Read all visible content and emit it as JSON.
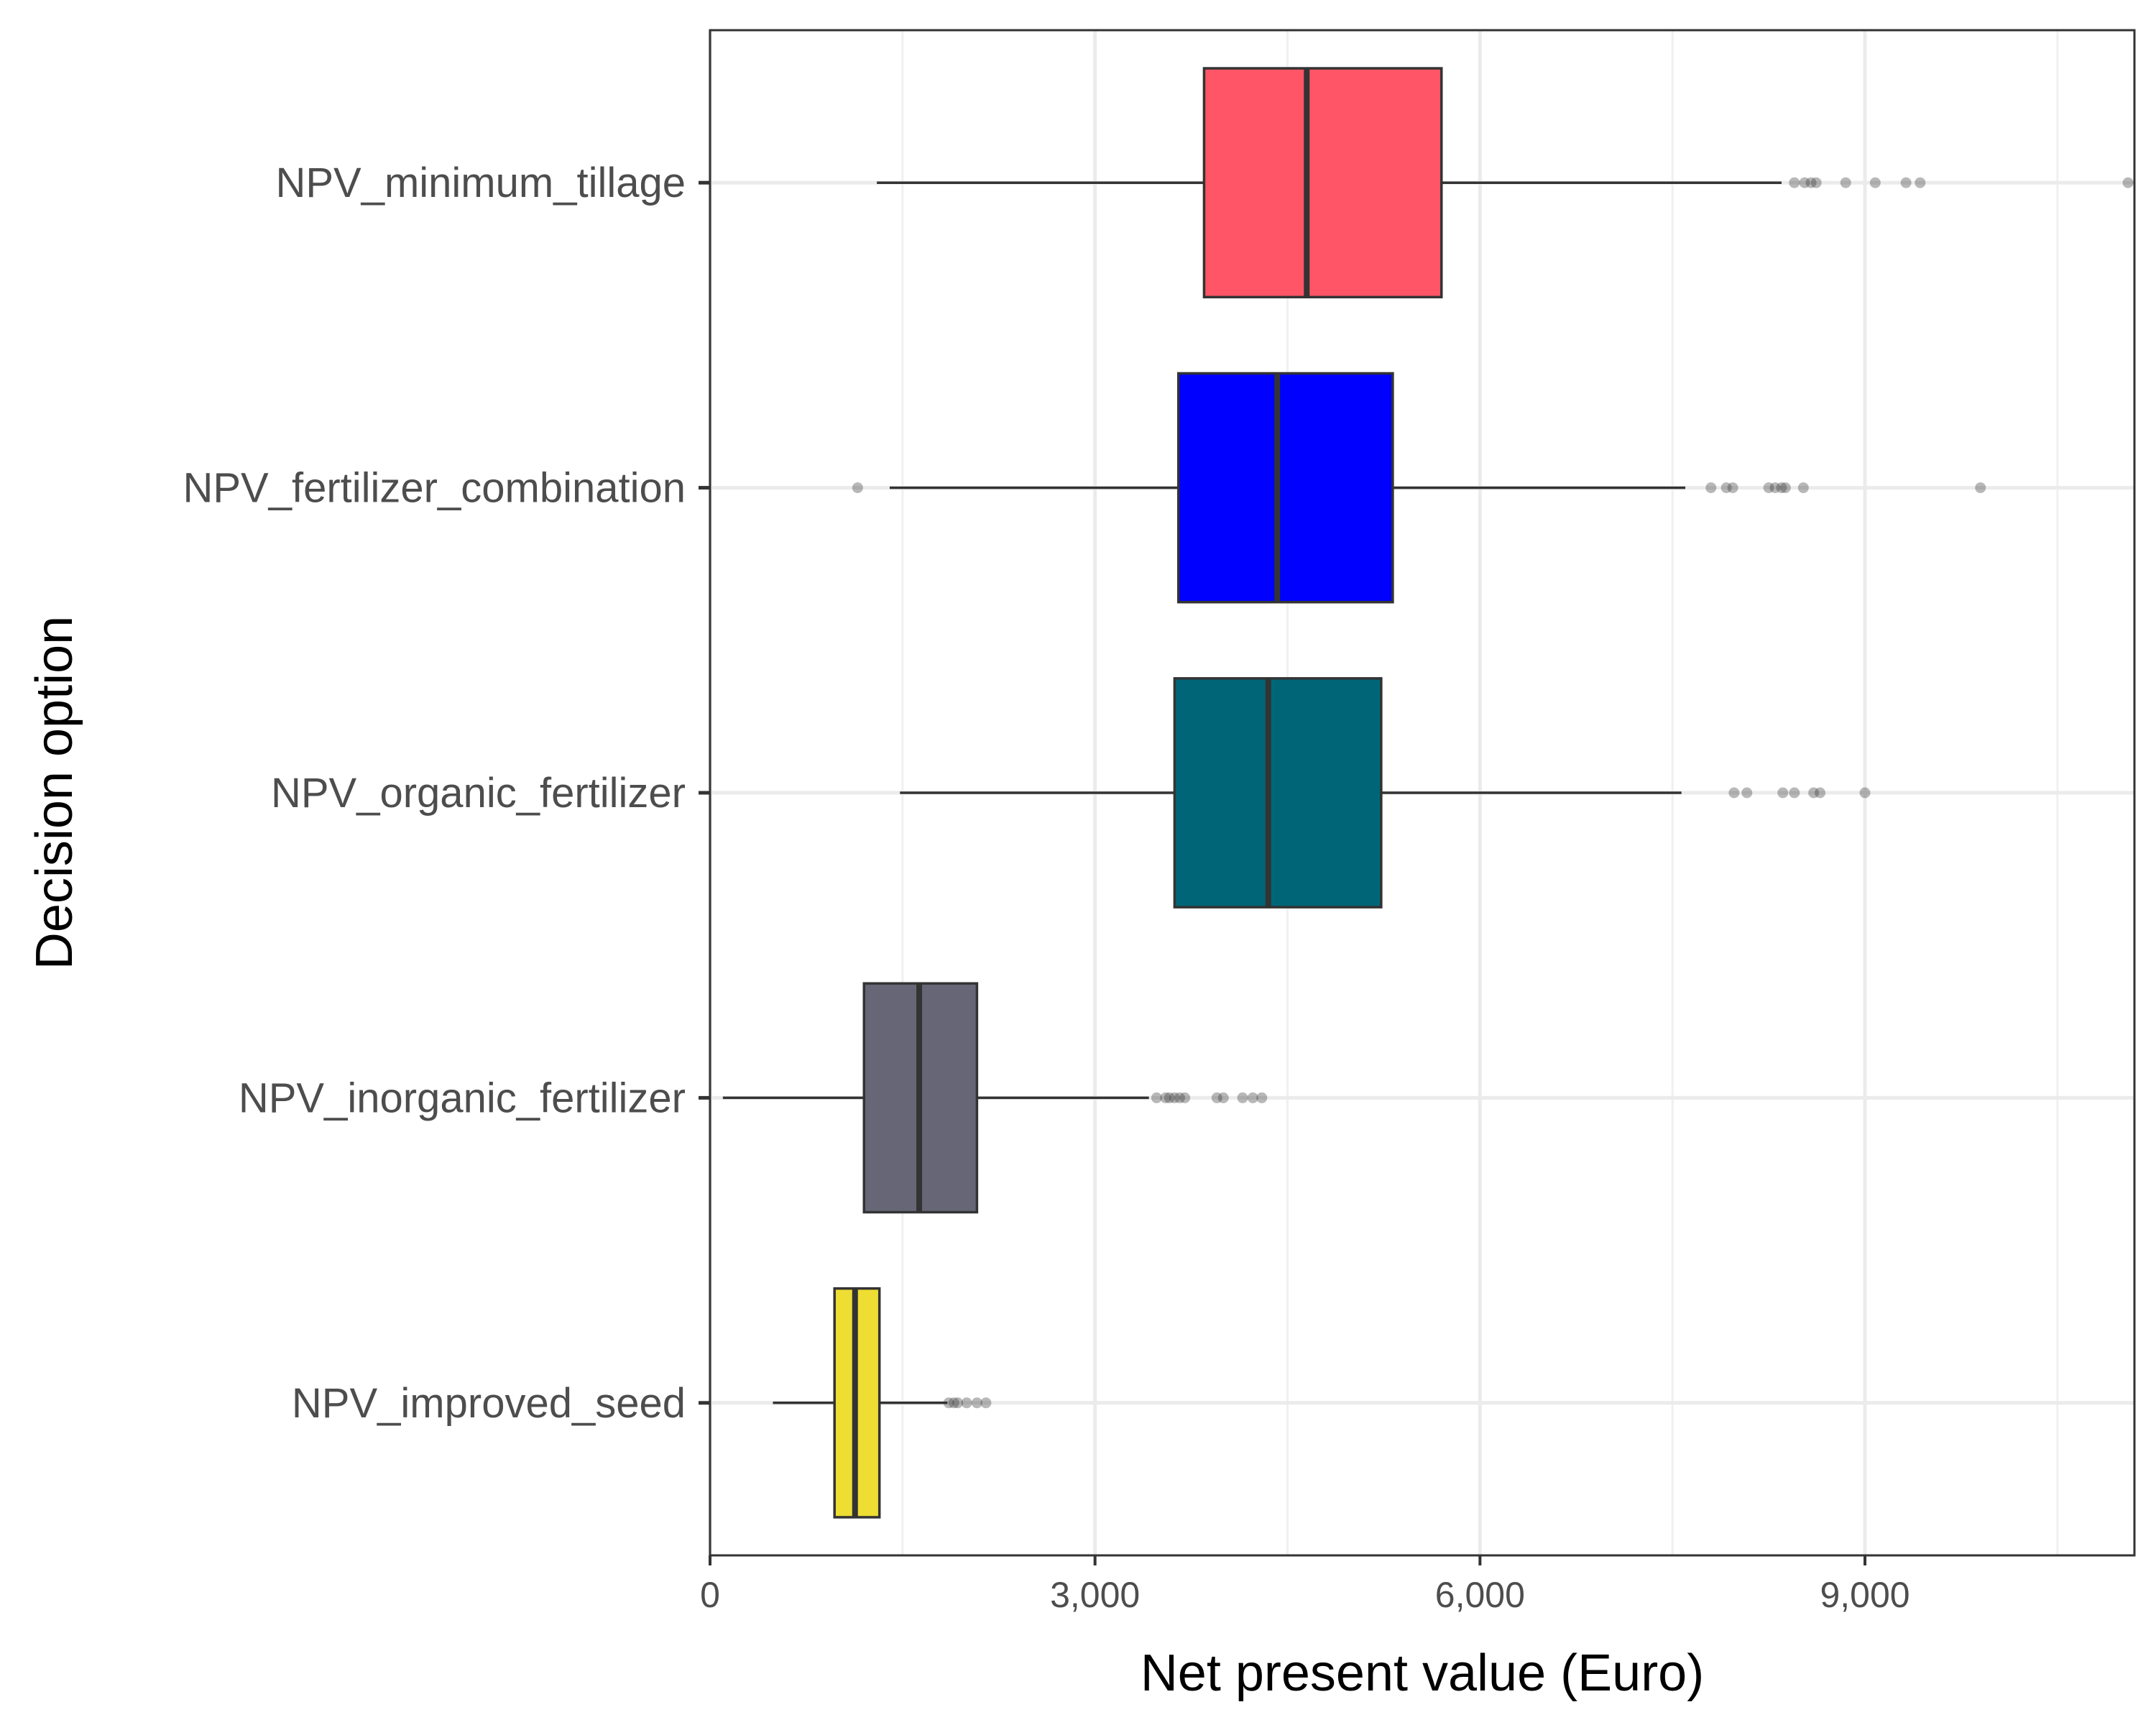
{
  "chart_data": {
    "type": "boxplot",
    "orientation": "horizontal",
    "xlabel": "Net present value (Euro)",
    "ylabel": "Decision option",
    "xlim": [
      0,
      11100
    ],
    "x_ticks": [
      0,
      3000,
      6000,
      9000
    ],
    "x_tick_labels": [
      "0",
      "3,000",
      "6,000",
      "9,000"
    ],
    "grid": true,
    "legend": "none",
    "series": [
      {
        "name": "NPV_minimum_tillage",
        "color": "#ff5566",
        "whisker_low": 1300,
        "q1": 3850,
        "median": 4650,
        "q3": 5700,
        "whisker_high": 8350,
        "outliers": [
          8450,
          8530,
          8580,
          8620,
          8850,
          9080,
          9320,
          9430,
          11050
        ]
      },
      {
        "name": "NPV_fertilizer_combination",
        "color": "#0000ff",
        "whisker_low": 1400,
        "q1": 3650,
        "median": 4420,
        "q3": 5320,
        "whisker_high": 7600,
        "outliers": [
          1150,
          7800,
          7920,
          7970,
          8250,
          8300,
          8350,
          8380,
          8520,
          9900
        ]
      },
      {
        "name": "NPV_organic_fertilizer",
        "color": "#006677",
        "whisker_low": 1480,
        "q1": 3620,
        "median": 4350,
        "q3": 5230,
        "whisker_high": 7570,
        "outliers": [
          7980,
          8080,
          8360,
          8450,
          8600,
          8650,
          9000
        ]
      },
      {
        "name": "NPV_inorganic_fertilizer",
        "color": "#666677",
        "whisker_low": 100,
        "q1": 1200,
        "median": 1630,
        "q3": 2080,
        "whisker_high": 3420,
        "outliers": [
          3480,
          3550,
          3580,
          3620,
          3660,
          3700,
          3950,
          4000,
          4150,
          4230,
          4300
        ]
      },
      {
        "name": "NPV_improved_seed",
        "color": "#eedd33",
        "whisker_low": 490,
        "q1": 970,
        "median": 1130,
        "q3": 1320,
        "whisker_high": 1850,
        "outliers": [
          1860,
          1900,
          1930,
          2000,
          2080,
          2150
        ]
      }
    ]
  }
}
